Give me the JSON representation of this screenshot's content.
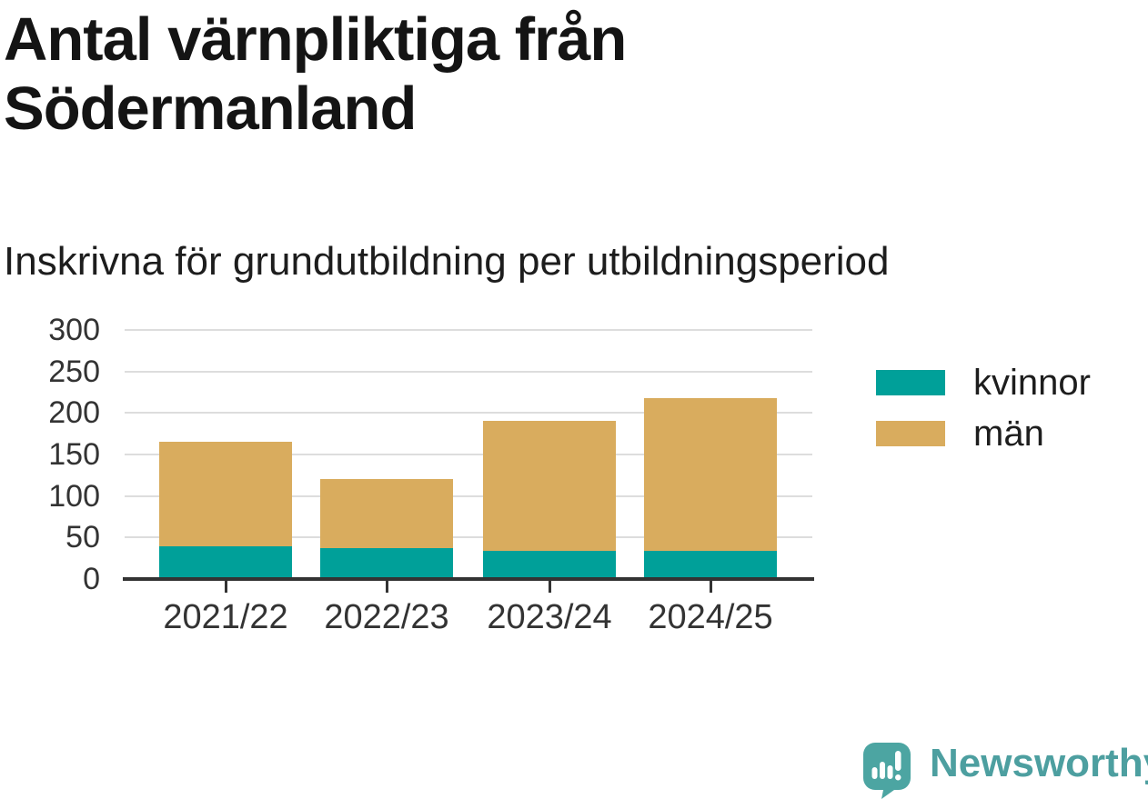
{
  "title": "Antal värnpliktiga från Södermanland",
  "subtitle": "Inskrivna för grundutbildning per utbildningsperiod",
  "chart_data": {
    "type": "bar",
    "stacked": true,
    "categories": [
      "2021/22",
      "2022/23",
      "2023/24",
      "2024/25"
    ],
    "series": [
      {
        "name": "kvinnor",
        "color": "#00a099",
        "values": [
          39,
          37,
          34,
          34
        ]
      },
      {
        "name": "män",
        "color": "#d9ac5e",
        "values": [
          126,
          83,
          156,
          184
        ]
      }
    ],
    "stack_totals": [
      165,
      120,
      190,
      218
    ],
    "yticks": [
      0,
      50,
      100,
      150,
      200,
      250,
      300
    ],
    "ylim": [
      0,
      300
    ],
    "grid": true,
    "legend_position": "right",
    "xlabel": "",
    "ylabel": ""
  },
  "legend": {
    "items": [
      {
        "label": "kvinnor",
        "color": "#00a099"
      },
      {
        "label": "män",
        "color": "#d9ac5e"
      }
    ]
  },
  "branding": {
    "logo_text": "Newsworthy",
    "logo_icon": "bar-chart-speech-bubble-icon",
    "logo_color": "#4ca5a2",
    "text_color": "#4d9fa0"
  },
  "colors": {
    "background": "#ffffff",
    "gridline": "#dddddd",
    "axis": "#333333",
    "text": "#1d1d1d"
  }
}
